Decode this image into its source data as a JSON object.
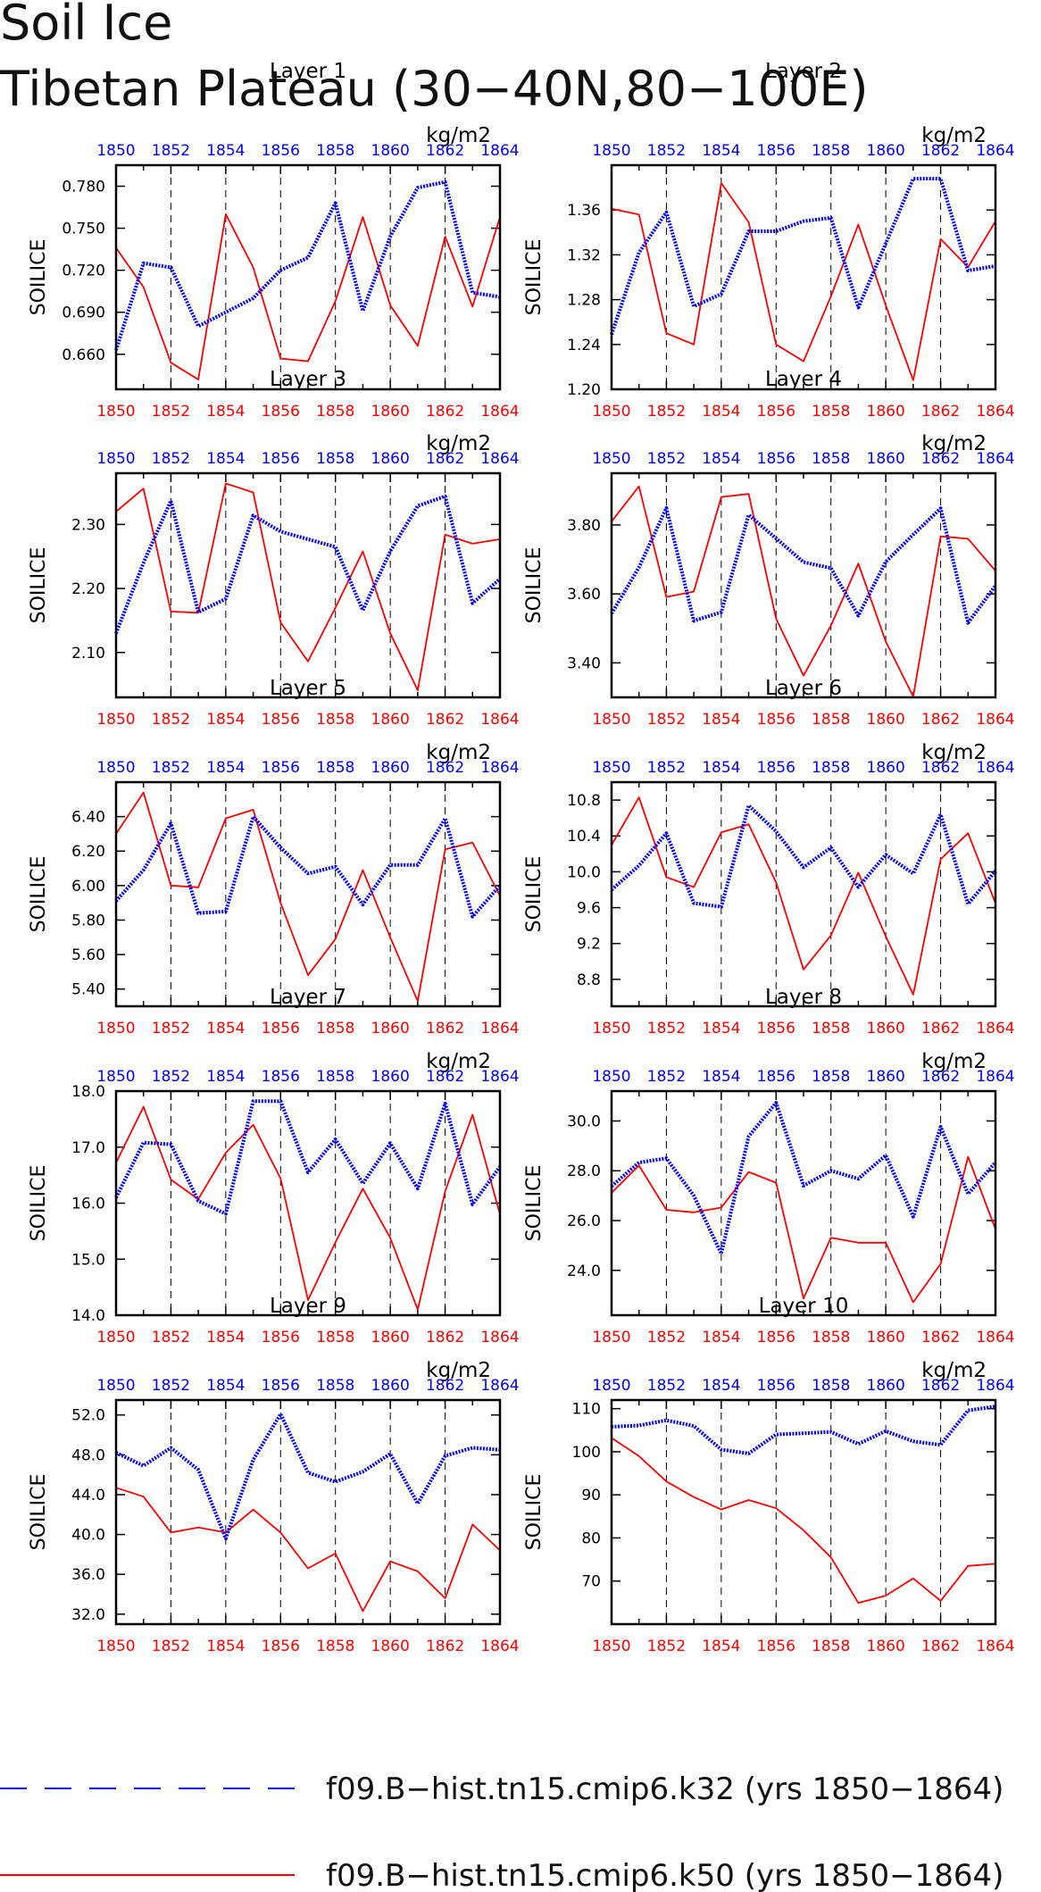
{
  "title_line1": "Soil Ice",
  "title_line2": "Tibetan Plateau (30−40N,80−100E)",
  "colors": {
    "blue": "#0000ff",
    "red": "#ff0000"
  },
  "legend": [
    {
      "label": "f09.B−hist.tn15.cmip6.k32 (yrs 1850−1864)",
      "color": "#0000ff",
      "style": "dashed"
    },
    {
      "label": "f09.B−hist.tn15.cmip6.k50 (yrs 1850−1864)",
      "color": "#ff0000",
      "style": "solid"
    }
  ],
  "chart_data": [
    {
      "type": "line",
      "title": "Layer 1",
      "ylabel": "SOILICE",
      "units": "kg/m2",
      "x": [
        1850,
        1851,
        1852,
        1853,
        1854,
        1855,
        1856,
        1857,
        1858,
        1859,
        1860,
        1861,
        1862,
        1863,
        1864
      ],
      "xticks": [
        "1850",
        "1852",
        "1854",
        "1856",
        "1858",
        "1860",
        "1862",
        "1864"
      ],
      "ylim": [
        0.635,
        0.795
      ],
      "yticks": [
        "0.660",
        "0.690",
        "0.720",
        "0.750",
        "0.780"
      ],
      "series": [
        {
          "color": "#0000ff",
          "values": [
            0.663,
            0.725,
            0.722,
            0.68,
            0.69,
            0.7,
            0.72,
            0.729,
            0.768,
            0.691,
            0.744,
            0.779,
            0.783,
            0.704,
            0.701
          ]
        },
        {
          "color": "#ff0000",
          "values": [
            0.736,
            0.708,
            0.654,
            0.642,
            0.76,
            0.722,
            0.657,
            0.655,
            0.698,
            0.758,
            0.695,
            0.666,
            0.744,
            0.694,
            0.758
          ]
        }
      ]
    },
    {
      "type": "line",
      "title": "Layer 2",
      "ylabel": "SOILICE",
      "units": "kg/m2",
      "x": [
        1850,
        1851,
        1852,
        1853,
        1854,
        1855,
        1856,
        1857,
        1858,
        1859,
        1860,
        1861,
        1862,
        1863,
        1864
      ],
      "xticks": [
        "1850",
        "1852",
        "1854",
        "1856",
        "1858",
        "1860",
        "1862",
        "1864"
      ],
      "ylim": [
        1.2,
        1.4
      ],
      "yticks": [
        "1.20",
        "1.24",
        "1.28",
        "1.32",
        "1.36"
      ],
      "series": [
        {
          "color": "#0000ff",
          "values": [
            1.249,
            1.322,
            1.358,
            1.274,
            1.285,
            1.341,
            1.341,
            1.35,
            1.353,
            1.273,
            1.33,
            1.388,
            1.388,
            1.306,
            1.31
          ]
        },
        {
          "color": "#ff0000",
          "values": [
            1.361,
            1.356,
            1.25,
            1.24,
            1.384,
            1.349,
            1.24,
            1.225,
            1.283,
            1.347,
            1.275,
            1.208,
            1.334,
            1.309,
            1.35
          ]
        }
      ]
    },
    {
      "type": "line",
      "title": "Layer 3",
      "ylabel": "SOILICE",
      "units": "kg/m2",
      "x": [
        1850,
        1851,
        1852,
        1853,
        1854,
        1855,
        1856,
        1857,
        1858,
        1859,
        1860,
        1861,
        1862,
        1863,
        1864
      ],
      "xticks": [
        "1850",
        "1852",
        "1854",
        "1856",
        "1858",
        "1860",
        "1862",
        "1864"
      ],
      "ylim": [
        2.03,
        2.38
      ],
      "yticks": [
        "2.10",
        "2.20",
        "2.30"
      ],
      "series": [
        {
          "color": "#0000ff",
          "values": [
            2.13,
            2.24,
            2.337,
            2.163,
            2.184,
            2.314,
            2.289,
            2.277,
            2.265,
            2.166,
            2.258,
            2.329,
            2.344,
            2.177,
            2.215
          ]
        },
        {
          "color": "#ff0000",
          "values": [
            2.32,
            2.356,
            2.164,
            2.162,
            2.364,
            2.35,
            2.147,
            2.086,
            2.17,
            2.258,
            2.13,
            2.041,
            2.284,
            2.27,
            2.277
          ]
        }
      ]
    },
    {
      "type": "line",
      "title": "Layer 4",
      "ylabel": "SOILICE",
      "units": "kg/m2",
      "x": [
        1850,
        1851,
        1852,
        1853,
        1854,
        1855,
        1856,
        1857,
        1858,
        1859,
        1860,
        1861,
        1862,
        1863,
        1864
      ],
      "xticks": [
        "1850",
        "1852",
        "1854",
        "1856",
        "1858",
        "1860",
        "1862",
        "1864"
      ],
      "ylim": [
        3.3,
        3.95
      ],
      "yticks": [
        "3.40",
        "3.60",
        "3.80"
      ],
      "series": [
        {
          "color": "#0000ff",
          "values": [
            3.543,
            3.677,
            3.849,
            3.522,
            3.547,
            3.829,
            3.761,
            3.692,
            3.675,
            3.537,
            3.693,
            3.772,
            3.848,
            3.516,
            3.624
          ]
        },
        {
          "color": "#ff0000",
          "values": [
            3.81,
            3.912,
            3.591,
            3.607,
            3.881,
            3.89,
            3.528,
            3.363,
            3.508,
            3.688,
            3.462,
            3.302,
            3.767,
            3.76,
            3.667
          ]
        }
      ]
    },
    {
      "type": "line",
      "title": "Layer 5",
      "ylabel": "SOILICE",
      "units": "kg/m2",
      "x": [
        1850,
        1851,
        1852,
        1853,
        1854,
        1855,
        1856,
        1857,
        1858,
        1859,
        1860,
        1861,
        1862,
        1863,
        1864
      ],
      "xticks": [
        "1850",
        "1852",
        "1854",
        "1856",
        "1858",
        "1860",
        "1862",
        "1864"
      ],
      "ylim": [
        5.3,
        6.6
      ],
      "yticks": [
        "5.40",
        "5.60",
        "5.80",
        "6.00",
        "6.20",
        "6.40"
      ],
      "series": [
        {
          "color": "#0000ff",
          "values": [
            5.91,
            6.09,
            6.36,
            5.84,
            5.85,
            6.4,
            6.22,
            6.07,
            6.11,
            5.89,
            6.12,
            6.12,
            6.39,
            5.82,
            6.0
          ]
        },
        {
          "color": "#ff0000",
          "values": [
            6.3,
            6.54,
            6.0,
            5.99,
            6.39,
            6.44,
            5.9,
            5.48,
            5.69,
            6.09,
            5.7,
            5.33,
            6.21,
            6.25,
            5.94
          ]
        }
      ]
    },
    {
      "type": "line",
      "title": "Layer 6",
      "ylabel": "SOILICE",
      "units": "kg/m2",
      "x": [
        1850,
        1851,
        1852,
        1853,
        1854,
        1855,
        1856,
        1857,
        1858,
        1859,
        1860,
        1861,
        1862,
        1863,
        1864
      ],
      "xticks": [
        "1850",
        "1852",
        "1854",
        "1856",
        "1858",
        "1860",
        "1862",
        "1864"
      ],
      "ylim": [
        8.5,
        11.0
      ],
      "yticks": [
        "8.8",
        "9.2",
        "9.6",
        "10.0",
        "10.4",
        "10.8"
      ],
      "series": [
        {
          "color": "#0000ff",
          "values": [
            9.8,
            10.07,
            10.43,
            9.65,
            9.61,
            10.74,
            10.45,
            10.05,
            10.27,
            9.83,
            10.19,
            9.98,
            10.64,
            9.64,
            10.01
          ]
        },
        {
          "color": "#ff0000",
          "values": [
            10.3,
            10.83,
            9.94,
            9.83,
            10.44,
            10.53,
            9.88,
            8.91,
            9.29,
            9.99,
            9.28,
            8.63,
            10.14,
            10.43,
            9.65
          ]
        }
      ]
    },
    {
      "type": "line",
      "title": "Layer 7",
      "ylabel": "SOILICE",
      "units": "kg/m2",
      "x": [
        1850,
        1851,
        1852,
        1853,
        1854,
        1855,
        1856,
        1857,
        1858,
        1859,
        1860,
        1861,
        1862,
        1863,
        1864
      ],
      "xticks": [
        "1850",
        "1852",
        "1854",
        "1856",
        "1858",
        "1860",
        "1862",
        "1864"
      ],
      "ylim": [
        14.0,
        18.0
      ],
      "yticks": [
        "14.0",
        "15.0",
        "16.0",
        "17.0",
        "18.0"
      ],
      "series": [
        {
          "color": "#0000ff",
          "values": [
            16.1,
            17.08,
            17.05,
            16.04,
            15.81,
            17.82,
            17.82,
            16.55,
            17.14,
            16.35,
            17.07,
            16.26,
            17.78,
            15.98,
            16.65
          ]
        },
        {
          "color": "#ff0000",
          "values": [
            16.72,
            17.72,
            16.42,
            16.07,
            16.9,
            17.4,
            16.44,
            14.27,
            15.3,
            16.26,
            15.38,
            14.1,
            16.21,
            17.58,
            15.8
          ]
        }
      ]
    },
    {
      "type": "line",
      "title": "Layer 8",
      "ylabel": "SOILICE",
      "units": "kg/m2",
      "x": [
        1850,
        1851,
        1852,
        1853,
        1854,
        1855,
        1856,
        1857,
        1858,
        1859,
        1860,
        1861,
        1862,
        1863,
        1864
      ],
      "xticks": [
        "1850",
        "1852",
        "1854",
        "1856",
        "1858",
        "1860",
        "1862",
        "1864"
      ],
      "ylim": [
        22.2,
        31.2
      ],
      "yticks": [
        "24.0",
        "26.0",
        "28.0",
        "30.0"
      ],
      "series": [
        {
          "color": "#0000ff",
          "values": [
            27.38,
            28.33,
            28.5,
            27.0,
            24.67,
            29.38,
            30.73,
            27.4,
            28.0,
            27.68,
            28.62,
            26.16,
            29.77,
            27.07,
            28.34
          ]
        },
        {
          "color": "#ff0000",
          "values": [
            27.12,
            28.21,
            26.43,
            26.33,
            26.52,
            27.95,
            27.52,
            22.87,
            25.31,
            25.11,
            25.11,
            22.72,
            24.26,
            28.56,
            25.66
          ]
        }
      ]
    },
    {
      "type": "line",
      "title": "Layer 9",
      "ylabel": "SOILICE",
      "units": "kg/m2",
      "x": [
        1850,
        1851,
        1852,
        1853,
        1854,
        1855,
        1856,
        1857,
        1858,
        1859,
        1860,
        1861,
        1862,
        1863,
        1864
      ],
      "xticks": [
        "1850",
        "1852",
        "1854",
        "1856",
        "1858",
        "1860",
        "1862",
        "1864"
      ],
      "ylim": [
        31.0,
        53.5
      ],
      "yticks": [
        "32.0",
        "36.0",
        "40.0",
        "44.0",
        "48.0",
        "52.0"
      ],
      "series": [
        {
          "color": "#0000ff",
          "values": [
            48.2,
            46.9,
            48.7,
            46.5,
            39.6,
            47.5,
            52.1,
            46.2,
            45.3,
            46.3,
            48.1,
            43.1,
            47.9,
            48.7,
            48.5
          ]
        },
        {
          "color": "#ff0000",
          "values": [
            44.7,
            43.8,
            40.2,
            40.7,
            40.2,
            42.5,
            40.2,
            36.6,
            38.1,
            32.3,
            37.3,
            36.3,
            33.6,
            41.0,
            38.4
          ]
        }
      ]
    },
    {
      "type": "line",
      "title": "Layer 10",
      "ylabel": "SOILICE",
      "units": "kg/m2",
      "x": [
        1850,
        1851,
        1852,
        1853,
        1854,
        1855,
        1856,
        1857,
        1858,
        1859,
        1860,
        1861,
        1862,
        1863,
        1864
      ],
      "xticks": [
        "1850",
        "1852",
        "1854",
        "1856",
        "1858",
        "1860",
        "1862",
        "1864"
      ],
      "ylim": [
        60,
        112
      ],
      "yticks": [
        "70",
        "80",
        "90",
        "100",
        "110"
      ],
      "series": [
        {
          "color": "#0000ff",
          "values": [
            105.8,
            106.1,
            107.3,
            106.0,
            100.5,
            99.6,
            104.0,
            104.3,
            104.6,
            101.8,
            104.8,
            102.4,
            101.6,
            109.6,
            110.5
          ]
        },
        {
          "color": "#ff0000",
          "values": [
            103.2,
            99.0,
            93.1,
            89.5,
            86.6,
            88.8,
            86.9,
            81.8,
            75.5,
            64.9,
            66.6,
            70.6,
            65.4,
            73.5,
            74.0
          ]
        }
      ]
    }
  ]
}
